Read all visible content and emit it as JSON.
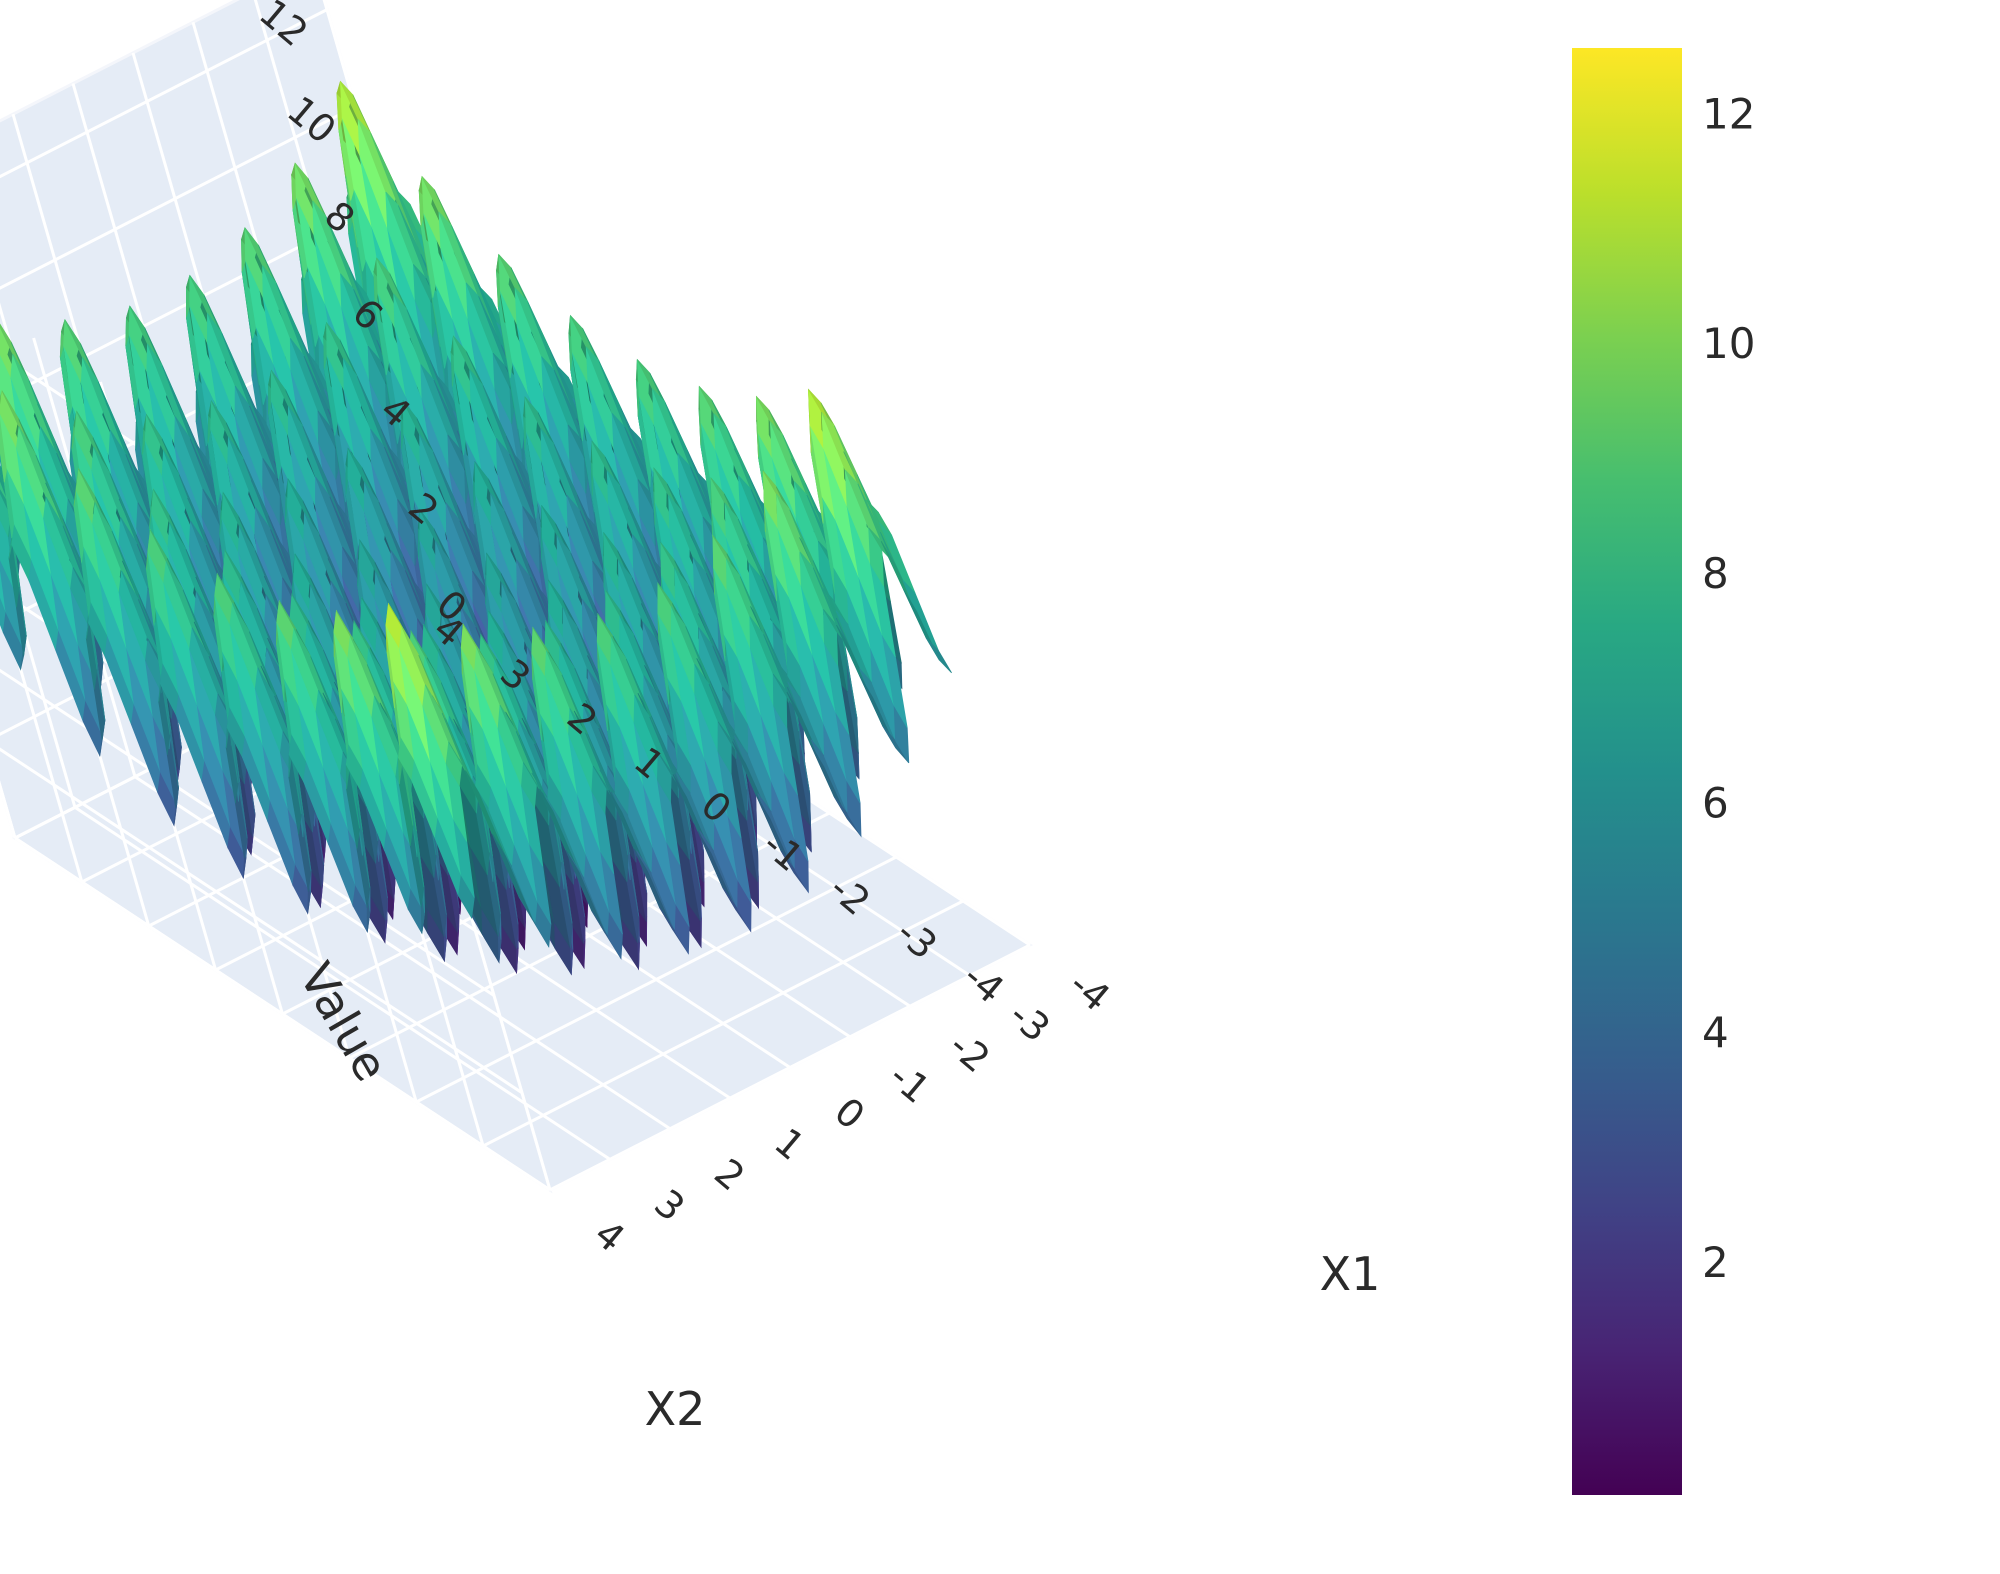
{
  "chart_data": {
    "type": "surface3d",
    "title": "",
    "colorscale": "Viridis",
    "surface": {
      "function": "Rastrigin",
      "x_range": [
        -4,
        4
      ],
      "y_range": [
        -4,
        4
      ],
      "z_range": [
        0,
        13
      ],
      "z_max_shown": 12.6
    },
    "axes": {
      "x": {
        "title": "X1",
        "ticks": [
          "-4",
          "-3",
          "-2",
          "-1",
          "0",
          "1",
          "2",
          "3",
          "4"
        ]
      },
      "y": {
        "title": "X2",
        "ticks": [
          "-4",
          "-3",
          "-2",
          "-1",
          "0",
          "1",
          "2",
          "3",
          "4"
        ]
      },
      "z": {
        "title": "Value",
        "ticks": [
          "0",
          "2",
          "4",
          "6",
          "8",
          "10",
          "12"
        ]
      }
    },
    "colorbar": {
      "ticks": [
        "2",
        "4",
        "6",
        "8",
        "10",
        "12"
      ],
      "range": [
        0,
        12.6
      ]
    },
    "grid": true,
    "scene_background": "#e5ecf6",
    "grid_color": "#ffffff"
  }
}
